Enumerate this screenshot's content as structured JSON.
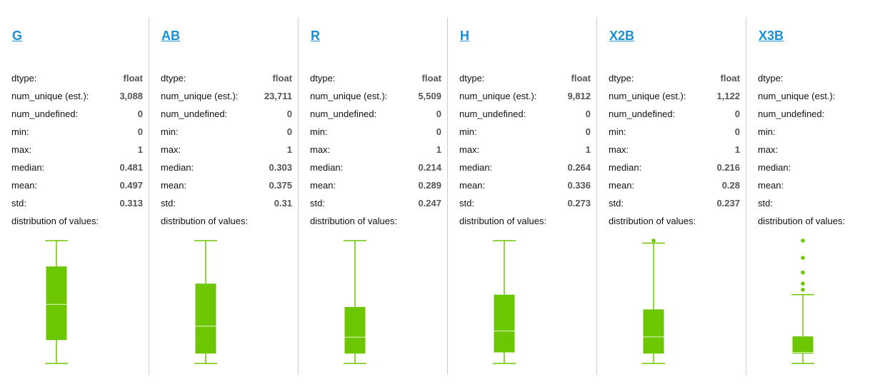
{
  "colors": {
    "link": "#1a8fd1",
    "box_fill": "#6cc700",
    "box_line": "#6cc700",
    "median_line": "#e6f5cc",
    "divider": "#cfcfcf"
  },
  "columns": [
    {
      "name": "G",
      "stats": [
        {
          "label": "dtype:",
          "value": "float"
        },
        {
          "label": "num_unique (est.):",
          "value": "3,088"
        },
        {
          "label": "num_undefined:",
          "value": "0"
        },
        {
          "label": "min:",
          "value": "0"
        },
        {
          "label": "max:",
          "value": "1"
        },
        {
          "label": "median:",
          "value": "0.481"
        },
        {
          "label": "mean:",
          "value": "0.497"
        },
        {
          "label": "std:",
          "value": "0.313"
        }
      ],
      "distribution_label": "distribution of values:",
      "box": {
        "whisker_low": 0,
        "q1": 0.19,
        "median": 0.481,
        "q3": 0.79,
        "whisker_high": 1,
        "outliers": []
      }
    },
    {
      "name": "AB",
      "stats": [
        {
          "label": "dtype:",
          "value": "float"
        },
        {
          "label": "num_unique (est.):",
          "value": "23,711"
        },
        {
          "label": "num_undefined:",
          "value": "0"
        },
        {
          "label": "min:",
          "value": "0"
        },
        {
          "label": "max:",
          "value": "1"
        },
        {
          "label": "median:",
          "value": "0.303"
        },
        {
          "label": "mean:",
          "value": "0.375"
        },
        {
          "label": "std:",
          "value": "0.31"
        }
      ],
      "distribution_label": "distribution of values:",
      "box": {
        "whisker_low": 0,
        "q1": 0.08,
        "median": 0.303,
        "q3": 0.65,
        "whisker_high": 1,
        "outliers": []
      }
    },
    {
      "name": "R",
      "stats": [
        {
          "label": "dtype:",
          "value": "float"
        },
        {
          "label": "num_unique (est.):",
          "value": "5,509"
        },
        {
          "label": "num_undefined:",
          "value": "0"
        },
        {
          "label": "min:",
          "value": "0"
        },
        {
          "label": "max:",
          "value": "1"
        },
        {
          "label": "median:",
          "value": "0.214"
        },
        {
          "label": "mean:",
          "value": "0.289"
        },
        {
          "label": "std:",
          "value": "0.247"
        }
      ],
      "distribution_label": "distribution of values:",
      "box": {
        "whisker_low": 0,
        "q1": 0.08,
        "median": 0.214,
        "q3": 0.46,
        "whisker_high": 1,
        "outliers": []
      }
    },
    {
      "name": "H",
      "stats": [
        {
          "label": "dtype:",
          "value": "float"
        },
        {
          "label": "num_unique (est.):",
          "value": "9,812"
        },
        {
          "label": "num_undefined:",
          "value": "0"
        },
        {
          "label": "min:",
          "value": "0"
        },
        {
          "label": "max:",
          "value": "1"
        },
        {
          "label": "median:",
          "value": "0.264"
        },
        {
          "label": "mean:",
          "value": "0.336"
        },
        {
          "label": "std:",
          "value": "0.273"
        }
      ],
      "distribution_label": "distribution of values:",
      "box": {
        "whisker_low": 0,
        "q1": 0.09,
        "median": 0.264,
        "q3": 0.56,
        "whisker_high": 1,
        "outliers": []
      }
    },
    {
      "name": "X2B",
      "stats": [
        {
          "label": "dtype:",
          "value": "float"
        },
        {
          "label": "num_unique (est.):",
          "value": "1,122"
        },
        {
          "label": "num_undefined:",
          "value": "0"
        },
        {
          "label": "min:",
          "value": "0"
        },
        {
          "label": "max:",
          "value": "1"
        },
        {
          "label": "median:",
          "value": "0.216"
        },
        {
          "label": "mean:",
          "value": "0.28"
        },
        {
          "label": "std:",
          "value": "0.237"
        }
      ],
      "distribution_label": "distribution of values:",
      "box": {
        "whisker_low": 0,
        "q1": 0.08,
        "median": 0.216,
        "q3": 0.44,
        "whisker_high": 0.98,
        "outliers": [
          1.0
        ]
      }
    },
    {
      "name": "X3B",
      "stats": [
        {
          "label": "dtype:",
          "value": ""
        },
        {
          "label": "num_unique (est.):",
          "value": ""
        },
        {
          "label": "num_undefined:",
          "value": ""
        },
        {
          "label": "min:",
          "value": ""
        },
        {
          "label": "max:",
          "value": ""
        },
        {
          "label": "median:",
          "value": ""
        },
        {
          "label": "mean:",
          "value": ""
        },
        {
          "label": "std:",
          "value": ""
        }
      ],
      "distribution_label": "distribution of values:",
      "box": {
        "whisker_low": 0,
        "q1": 0.08,
        "median": 0.09,
        "q3": 0.22,
        "whisker_high": 0.56,
        "outliers": [
          0.6,
          0.65,
          0.74,
          0.86,
          1.0
        ]
      }
    }
  ]
}
